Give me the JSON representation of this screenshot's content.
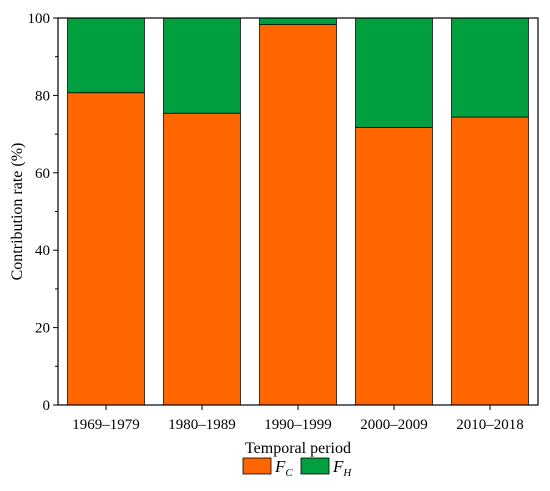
{
  "chart_data": {
    "type": "bar",
    "stacked": true,
    "categories": [
      "1969–1979",
      "1980–1989",
      "1990–1999",
      "2000–2009",
      "2010–2018"
    ],
    "series": [
      {
        "name": "F_C",
        "label_main": "F",
        "label_sub": "C",
        "color": "#FF6600",
        "values": [
          80.7,
          75.4,
          98.3,
          71.7,
          74.4
        ]
      },
      {
        "name": "F_H",
        "label_main": "F",
        "label_sub": "H",
        "color": "#00A040",
        "values": [
          19.3,
          24.6,
          1.7,
          28.3,
          25.6
        ]
      }
    ],
    "xlabel": "Temporal period",
    "ylabel": "Contribution rate (%)",
    "ylim": [
      0,
      100
    ],
    "yticks": [
      0,
      20,
      40,
      60,
      80,
      100
    ],
    "legend_position": "bottom-center",
    "grid": false
  }
}
